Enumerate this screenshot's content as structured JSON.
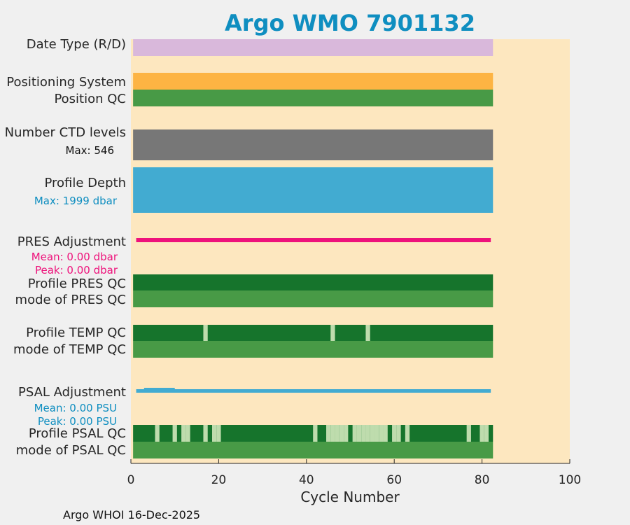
{
  "chart_data": {
    "type": "bar",
    "title": "Argo WMO 7901132",
    "xlabel": "Cycle Number",
    "xlim": [
      0,
      100
    ],
    "xticks": [
      "0",
      "20",
      "40",
      "60",
      "80",
      "100"
    ],
    "cycles": [
      1,
      82
    ],
    "footer": "Argo WHOI 16-Dec-2025",
    "colors": {
      "title": "#0f8ec0",
      "plot_bg": "#fde7bf",
      "date_type": "#d9b8db",
      "positioning": "#fdb443",
      "qc_good": "#489a46",
      "qc_dark": "#16742c",
      "qc_light": "#bedcad",
      "ctd": "#777777",
      "depth": "#42abd1",
      "pres_adj": "#ee127b",
      "psal_adj": "#42abd1"
    },
    "rows": {
      "date_type": {
        "label": "Date Type (R/D)"
      },
      "positioning": {
        "label": "Positioning System"
      },
      "position_qc": {
        "label": "Position QC"
      },
      "ctd": {
        "label": "Number CTD levels",
        "sub": "Max: 546"
      },
      "depth": {
        "label": "Profile Depth",
        "sub": "Max: 1999 dbar"
      },
      "pres_adj": {
        "label": "PRES Adjustment",
        "sub1": "Mean: 0.00 dbar",
        "sub2": "Peak: 0.00 dbar"
      },
      "profile_pres_qc": {
        "label": "Profile PRES QC"
      },
      "mode_pres_qc": {
        "label": "mode of PRES QC"
      },
      "profile_temp_qc": {
        "label": "Profile TEMP QC",
        "light_cycles": [
          17,
          46,
          54
        ]
      },
      "mode_temp_qc": {
        "label": "mode of TEMP QC"
      },
      "psal_adj": {
        "label": "PSAL Adjustment",
        "sub1": "Mean: 0.00 PSU",
        "sub2": "Peak: 0.00 PSU"
      },
      "profile_psal_qc": {
        "label": "Profile PSAL QC",
        "light_cycles": [
          6,
          10,
          12,
          13,
          17,
          19,
          20,
          42,
          45,
          46,
          47,
          48,
          49,
          51,
          52,
          53,
          54,
          55,
          56,
          57,
          58,
          60,
          61,
          63,
          77,
          80,
          81
        ]
      },
      "mode_psal_qc": {
        "label": "mode of PSAL QC"
      }
    }
  }
}
